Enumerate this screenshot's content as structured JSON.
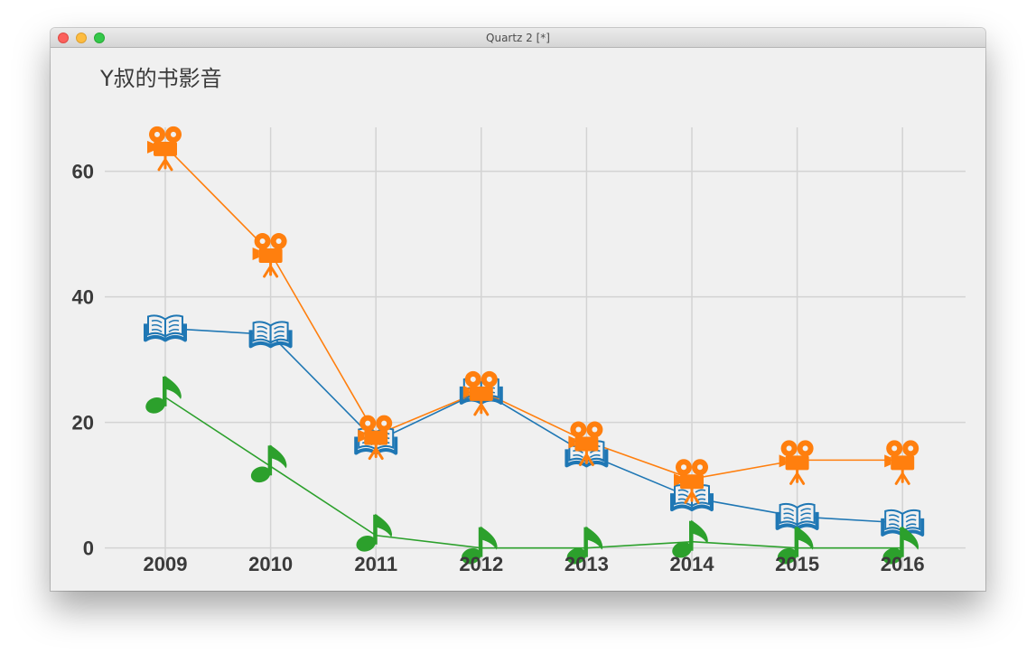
{
  "window": {
    "title": "Quartz 2 [*]"
  },
  "chart_data": {
    "type": "line",
    "title": "Y叔的书影音",
    "xlabel": "",
    "ylabel": "",
    "categories": [
      "2009",
      "2010",
      "2011",
      "2012",
      "2013",
      "2014",
      "2015",
      "2016"
    ],
    "ylim": [
      -3.5,
      67
    ],
    "yticks": [
      0,
      20,
      40,
      60
    ],
    "grid": true,
    "series": [
      {
        "icon": "book-icon",
        "color": "#1f77b4",
        "values": [
          35,
          34,
          17,
          25,
          15,
          8,
          5,
          4
        ]
      },
      {
        "icon": "movie-camera-icon",
        "color": "#ff7f0e",
        "values": [
          64,
          47,
          18,
          25,
          17,
          11,
          14,
          14
        ]
      },
      {
        "icon": "music-note-icon",
        "color": "#2ca02c",
        "values": [
          24,
          13,
          2,
          0,
          0,
          1,
          0,
          0
        ]
      }
    ]
  }
}
